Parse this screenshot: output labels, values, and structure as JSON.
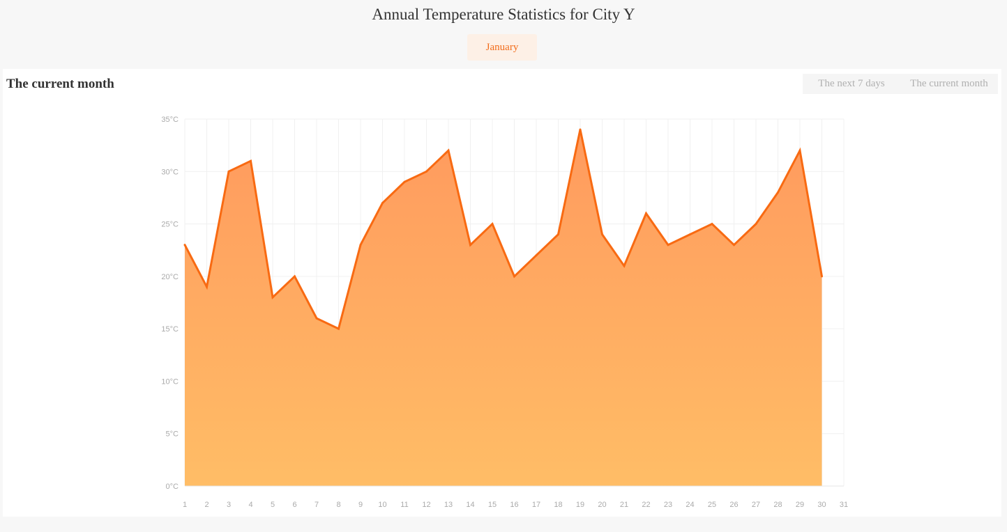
{
  "header": {
    "title": "Annual Temperature Statistics for City Y",
    "active_month": "January"
  },
  "panel": {
    "title": "The current month",
    "range_options": [
      "The next 7 days",
      "The current month"
    ],
    "selected_range": "The current month"
  },
  "colors": {
    "accent": "#f26c1a",
    "line": "#f86a12",
    "area_top": "#ff9a5e",
    "area_bottom": "#ffbd66",
    "grid": "#f0f0f0",
    "axis_text": "#aaaaaa"
  },
  "chart_data": {
    "type": "area",
    "title": "",
    "xlabel": "",
    "ylabel": "",
    "x": [
      1,
      2,
      3,
      4,
      5,
      6,
      7,
      8,
      9,
      10,
      11,
      12,
      13,
      14,
      15,
      16,
      17,
      18,
      19,
      20,
      21,
      22,
      23,
      24,
      25,
      26,
      27,
      28,
      29,
      30
    ],
    "x_ticks": [
      "1",
      "2",
      "3",
      "4",
      "5",
      "6",
      "7",
      "8",
      "9",
      "10",
      "11",
      "12",
      "13",
      "14",
      "15",
      "16",
      "17",
      "18",
      "19",
      "20",
      "21",
      "22",
      "23",
      "24",
      "25",
      "26",
      "27",
      "28",
      "29",
      "30",
      "31"
    ],
    "xlim": [
      1,
      31
    ],
    "ylim": [
      0,
      35
    ],
    "y_ticks": [
      {
        "value": 0,
        "label": "0°C"
      },
      {
        "value": 5,
        "label": "5°C"
      },
      {
        "value": 10,
        "label": "10°C"
      },
      {
        "value": 15,
        "label": "15°C"
      },
      {
        "value": 20,
        "label": "20°C"
      },
      {
        "value": 25,
        "label": "25°C"
      },
      {
        "value": 30,
        "label": "30°C"
      },
      {
        "value": 35,
        "label": "35°C"
      }
    ],
    "series": [
      {
        "values": [
          23,
          19,
          30,
          31,
          18,
          20,
          16,
          15,
          23,
          27,
          29,
          30,
          32,
          23,
          25,
          20,
          22,
          24,
          34,
          24,
          21,
          26,
          23,
          24,
          25,
          23,
          25,
          28,
          32,
          20
        ]
      }
    ],
    "grid": true,
    "legend": "none"
  }
}
